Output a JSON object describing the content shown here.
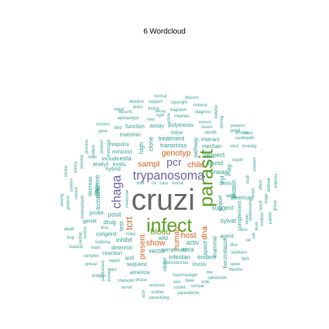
{
  "title": "6  Wordcloud",
  "colors": {
    "teal": "#2e9e8e",
    "purple": "#6b5fa8",
    "orange": "#d35f1c",
    "green": "#5aa020",
    "gray": "#666666",
    "lightgray": "#8f8f8f"
  },
  "words": [
    {
      "t": "cruzi",
      "c": "gray",
      "w": 9
    },
    {
      "t": "infect",
      "c": "green",
      "w": 8
    },
    {
      "t": "parasit",
      "c": "green",
      "w": 8
    },
    {
      "t": "trypanosoma",
      "c": "purple",
      "w": 6
    },
    {
      "t": "chaga",
      "c": "purple",
      "w": 6
    },
    {
      "t": "pcr",
      "c": "purple",
      "w": 5
    },
    {
      "t": "tcrt",
      "c": "orange",
      "w": 5
    },
    {
      "t": "blood",
      "c": "green",
      "w": 4
    },
    {
      "t": "sampl",
      "c": "orange",
      "w": 4
    },
    {
      "t": "genotyp",
      "c": "orange",
      "w": 4
    },
    {
      "t": "chile",
      "c": "orange",
      "w": 4
    },
    {
      "t": "host",
      "c": "orange",
      "w": 4
    },
    {
      "t": "show",
      "c": "orange",
      "w": 4
    },
    {
      "t": "dna",
      "c": "orange",
      "w": 4
    },
    {
      "t": "present",
      "c": "orange",
      "w": 4
    },
    {
      "t": "human",
      "c": "orange",
      "w": 4
    },
    {
      "t": "clone",
      "c": "teal",
      "w": 3
    },
    {
      "t": "transmiss",
      "c": "teal",
      "w": 3
    },
    {
      "t": "treatment",
      "c": "teal",
      "w": 3
    },
    {
      "t": "high",
      "c": "teal",
      "w": 3
    },
    {
      "t": "esta",
      "c": "teal",
      "w": 3
    },
    {
      "t": "lineag",
      "c": "teal",
      "w": 3
    },
    {
      "t": "found",
      "c": "teal",
      "w": 3
    },
    {
      "t": "respect",
      "c": "teal",
      "w": 3
    },
    {
      "t": "posit",
      "c": "teal",
      "w": 3
    },
    {
      "t": "test",
      "c": "teal",
      "w": 3
    },
    {
      "t": "vector",
      "c": "teal",
      "w": 3
    },
    {
      "t": "infestan",
      "c": "teal",
      "w": 3
    },
    {
      "t": "endem",
      "c": "teal",
      "w": 3
    },
    {
      "t": "activ",
      "c": "teal",
      "w": 3
    },
    {
      "t": "area",
      "c": "teal",
      "w": 3
    },
    {
      "t": "inhibit",
      "c": "teal",
      "w": 3
    },
    {
      "t": "drug",
      "c": "teal",
      "w": 3
    },
    {
      "t": "suggest",
      "c": "teal",
      "w": 3
    },
    {
      "t": "sylvat",
      "c": "teal",
      "w": 3
    },
    {
      "t": "protein",
      "c": "teal",
      "w": 3
    },
    {
      "t": "tcchronic",
      "c": "teal",
      "w": 3
    },
    {
      "t": "differenti",
      "c": "teal",
      "w": 3
    },
    {
      "t": "may",
      "c": "teal",
      "w": 3
    },
    {
      "t": "cyt",
      "c": "teal",
      "w": 3
    },
    {
      "t": "compound",
      "c": "teal",
      "w": 2
    },
    {
      "t": "assay",
      "c": "teal",
      "w": 2
    },
    {
      "t": "polymeras",
      "c": "teal",
      "w": 2
    },
    {
      "t": "mice",
      "c": "teal",
      "w": 2
    },
    {
      "t": "function",
      "c": "teal",
      "w": 2
    },
    {
      "t": "triatomin",
      "c": "teal",
      "w": 2
    },
    {
      "t": "respons",
      "c": "teal",
      "w": 2
    },
    {
      "t": "minicircl",
      "c": "teal",
      "w": 2
    },
    {
      "t": "include",
      "c": "teal",
      "w": 2
    },
    {
      "t": "hybrid",
      "c": "teal",
      "w": 2
    },
    {
      "t": "analyz",
      "c": "teal",
      "w": 2
    },
    {
      "t": "evalu",
      "c": "teal",
      "w": 2
    },
    {
      "t": "pathway",
      "c": "teal",
      "w": 2
    },
    {
      "t": "mechan",
      "c": "teal",
      "w": 2
    },
    {
      "t": "interact",
      "c": "teal",
      "w": 2
    },
    {
      "t": "deriv",
      "c": "teal",
      "w": 2
    },
    {
      "t": "import",
      "c": "teal",
      "w": 2
    },
    {
      "t": "well",
      "c": "teal",
      "w": 2
    },
    {
      "t": "american",
      "c": "teal",
      "w": 2
    },
    {
      "t": "complement",
      "c": "teal",
      "w": 2
    },
    {
      "t": "agent",
      "c": "teal",
      "w": 2
    },
    {
      "t": "benznidazol",
      "c": "teal",
      "w": 2
    },
    {
      "t": "mammal",
      "c": "teal",
      "w": 2
    },
    {
      "t": "specif",
      "c": "teal",
      "w": 2
    },
    {
      "t": "involv",
      "c": "teal",
      "w": 2
    },
    {
      "t": "wild",
      "c": "teal",
      "w": 2
    },
    {
      "t": "obser",
      "c": "teal",
      "w": 2
    },
    {
      "t": "sequenc",
      "c": "teal",
      "w": 2
    },
    {
      "t": "anti",
      "c": "teal",
      "w": 2
    },
    {
      "t": "reaction",
      "c": "teal",
      "w": 2
    },
    {
      "t": "determin",
      "c": "teal",
      "w": 2
    },
    {
      "t": "congenit",
      "c": "teal",
      "w": 2
    },
    {
      "t": "genet",
      "c": "teal",
      "w": 2
    },
    {
      "t": "probe",
      "c": "teal",
      "w": 2
    },
    {
      "t": "tissu",
      "c": "teal",
      "w": 2
    },
    {
      "t": "decreas",
      "c": "teal",
      "w": 2
    },
    {
      "t": "america",
      "c": "teal",
      "w": 2
    },
    {
      "t": "parasitemia",
      "c": "teal",
      "w": 1
    },
    {
      "t": "parasitolog",
      "c": "teal",
      "w": 1
    },
    {
      "t": "reservoir",
      "c": "teal",
      "w": 1
    },
    {
      "t": "mother",
      "c": "teal",
      "w": 1
    },
    {
      "t": "vivo",
      "c": "teal",
      "w": 1
    },
    {
      "t": "societi",
      "c": "teal",
      "w": 1
    },
    {
      "t": "compar",
      "c": "teal",
      "w": 1
    },
    {
      "t": "base",
      "c": "teal",
      "w": 1
    },
    {
      "t": "trypomastigot",
      "c": "teal",
      "w": 1
    },
    {
      "t": "oxidoreductas",
      "c": "teal",
      "w": 1
    },
    {
      "t": "calreticulin",
      "c": "teal",
      "w": 1
    },
    {
      "t": "indic",
      "c": "teal",
      "w": 1
    },
    {
      "t": "low",
      "c": "teal",
      "w": 1
    },
    {
      "t": "therefor",
      "c": "teal",
      "w": 1
    },
    {
      "t": "sever",
      "c": "teal",
      "w": 1
    },
    {
      "t": "type",
      "c": "teal",
      "w": 1
    },
    {
      "t": "southern",
      "c": "teal",
      "w": 1
    },
    {
      "t": "dtus",
      "c": "teal",
      "w": 1
    },
    {
      "t": "non",
      "c": "teal",
      "w": 1
    },
    {
      "t": "rat",
      "c": "teal",
      "w": 1
    },
    {
      "t": "character",
      "c": "teal",
      "w": 1
    },
    {
      "t": "sensit",
      "c": "teal",
      "w": 1
    },
    {
      "t": "phase",
      "c": "teal",
      "w": 1
    },
    {
      "t": "antigen",
      "c": "teal",
      "w": 1
    },
    {
      "t": "region",
      "c": "teal",
      "w": 1
    },
    {
      "t": "preval",
      "c": "teal",
      "w": 1
    },
    {
      "t": "complex",
      "c": "teal",
      "w": 1
    },
    {
      "t": "triatoma",
      "c": "teal",
      "w": 1
    },
    {
      "t": "medicin",
      "c": "teal",
      "w": 1
    },
    {
      "t": "death",
      "c": "teal",
      "w": 1
    },
    {
      "t": "cardiac",
      "c": "teal",
      "w": 1
    },
    {
      "t": "chain",
      "c": "teal",
      "w": 1
    },
    {
      "t": "thus",
      "c": "teal",
      "w": 1
    },
    {
      "t": "induc",
      "c": "teal",
      "w": 1
    },
    {
      "t": "molecular",
      "c": "teal",
      "w": 1
    },
    {
      "t": "time",
      "c": "teal",
      "w": 1
    },
    {
      "t": "inc",
      "c": "teal",
      "w": 1
    },
    {
      "t": "caus",
      "c": "teal",
      "w": 1
    },
    {
      "t": "mortal",
      "c": "teal",
      "w": 1
    },
    {
      "t": "main",
      "c": "teal",
      "w": 1
    },
    {
      "t": "develop",
      "c": "teal",
      "w": 1
    },
    {
      "t": "bind",
      "c": "teal",
      "w": 1
    },
    {
      "t": "chorion",
      "c": "teal",
      "w": 1
    },
    {
      "t": "gene",
      "c": "teal",
      "w": 1
    },
    {
      "t": "epimastigot",
      "c": "teal",
      "w": 1
    },
    {
      "t": "new",
      "c": "teal",
      "w": 1
    },
    {
      "t": "action",
      "c": "teal",
      "w": 1
    },
    {
      "t": "right",
      "c": "teal",
      "w": 1
    },
    {
      "t": "biolog",
      "c": "teal",
      "w": 1
    },
    {
      "t": "describ",
      "c": "teal",
      "w": 1
    },
    {
      "t": "direct",
      "c": "teal",
      "w": 1
    },
    {
      "t": "distribut",
      "c": "teal",
      "w": 1
    },
    {
      "t": "support",
      "c": "teal",
      "w": 1
    },
    {
      "t": "normal",
      "c": "teal",
      "w": 1
    },
    {
      "t": "belong",
      "c": "teal",
      "w": 1
    },
    {
      "t": "fragment",
      "c": "teal",
      "w": 1
    },
    {
      "t": "mepraia",
      "c": "teal",
      "w": 1
    },
    {
      "t": "copyright",
      "c": "teal",
      "w": 1
    },
    {
      "t": "discuss",
      "c": "teal",
      "w": 1
    },
    {
      "t": "molecul",
      "c": "teal",
      "w": 1
    },
    {
      "t": "diagnosi",
      "c": "teal",
      "w": 1
    },
    {
      "t": "immun",
      "c": "teal",
      "w": 1
    },
    {
      "t": "reserv",
      "c": "teal",
      "w": 1
    },
    {
      "t": "individu",
      "c": "teal",
      "w": 1
    },
    {
      "t": "identifi",
      "c": "teal",
      "w": 1
    },
    {
      "t": "popul",
      "c": "teal",
      "w": 1
    },
    {
      "t": "damag",
      "c": "teal",
      "w": 1
    },
    {
      "t": "presenc",
      "c": "teal",
      "w": 1
    },
    {
      "t": "propos",
      "c": "teal",
      "w": 1
    },
    {
      "t": "cardiopath",
      "c": "teal",
      "w": 1
    },
    {
      "t": "work",
      "c": "teal",
      "w": 1
    },
    {
      "t": "clinic",
      "c": "teal",
      "w": 1
    },
    {
      "t": "investig",
      "c": "teal",
      "w": 1
    },
    {
      "t": "report",
      "c": "teal",
      "w": 1
    },
    {
      "t": "conserv",
      "c": "teal",
      "w": 1
    },
    {
      "t": "rodent",
      "c": "teal",
      "w": 1
    },
    {
      "t": "process",
      "c": "teal",
      "w": 1
    },
    {
      "t": "product",
      "c": "teal",
      "w": 1
    },
    {
      "t": "similar",
      "c": "teal",
      "w": 1
    },
    {
      "t": "confirm",
      "c": "teal",
      "w": 1
    },
    {
      "t": "current",
      "c": "teal",
      "w": 1
    },
    {
      "t": "among",
      "c": "teal",
      "w": 1
    },
    {
      "t": "general",
      "c": "teal",
      "w": 1
    },
    {
      "t": "kinetoplastid",
      "c": "teal",
      "w": 1
    },
    {
      "t": "affect",
      "c": "teal",
      "w": 1
    },
    {
      "t": "studi",
      "c": "teal",
      "w": 1
    },
    {
      "t": "isolat",
      "c": "teal",
      "w": 1
    },
    {
      "t": "result",
      "c": "teal",
      "w": 1
    },
    {
      "t": "epidemiolog",
      "c": "teal",
      "w": 1
    },
    {
      "t": "stage",
      "c": "teal",
      "w": 1
    },
    {
      "t": "patient",
      "c": "teal",
      "w": 1
    },
    {
      "t": "group",
      "c": "teal",
      "w": 1
    },
    {
      "t": "level",
      "c": "teal",
      "w": 1
    },
    {
      "t": "method",
      "c": "teal",
      "w": 1
    },
    {
      "t": "strain",
      "c": "teal",
      "w": 1
    },
    {
      "t": "cell",
      "c": "teal",
      "w": 1
    },
    {
      "t": "express",
      "c": "teal",
      "w": 1
    },
    {
      "t": "vitro",
      "c": "teal",
      "w": 1
    },
    {
      "t": "bug",
      "c": "teal",
      "w": 1
    },
    {
      "t": "negat",
      "c": "teal",
      "w": 1
    },
    {
      "t": "transcript",
      "c": "teal",
      "w": 1
    },
    {
      "t": "bolivia",
      "c": "teal",
      "w": 1
    },
    {
      "t": "antibodi",
      "c": "teal",
      "w": 1
    },
    {
      "t": "domest",
      "c": "teal",
      "w": 1
    },
    {
      "t": "peridomest",
      "c": "teal",
      "w": 1
    },
    {
      "t": "control",
      "c": "teal",
      "w": 1
    },
    {
      "t": "acut",
      "c": "teal",
      "w": 1
    }
  ]
}
